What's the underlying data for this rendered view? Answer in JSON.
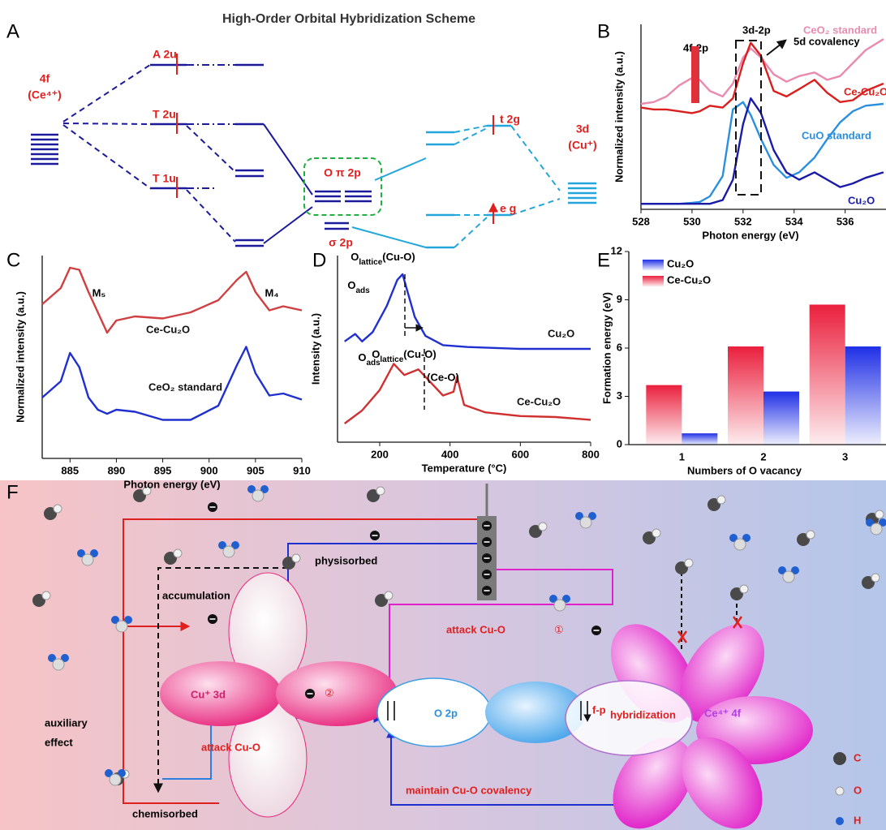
{
  "scheme_a": {
    "panel": "A",
    "title": "High-Order Orbital Hybridization Scheme",
    "ce_orbital": "4f",
    "ce_ion": "(Ce⁴⁺)",
    "a2u": "A 2u",
    "t2u": "T 2u",
    "t1u": "T 1u",
    "o_pi": "O π 2p",
    "o_sigma": "σ 2p",
    "t2g": "t 2g",
    "eg": "e g",
    "cu_orbital": "3d",
    "cu_ion": "(Cu⁺)"
  },
  "chart_data": [
    {
      "type": "line",
      "panel": "B",
      "xlabel": "Photon energy (eV)",
      "ylabel": "Normalized intensity (a.u.)",
      "xlim": [
        528,
        537.6
      ],
      "xticks": [
        528,
        530,
        532,
        534,
        536
      ],
      "ylim": [
        0,
        10
      ],
      "x": [
        528,
        528.5,
        529,
        529.5,
        530,
        530.3,
        530.7,
        531.2,
        531.6,
        532,
        532.3,
        532.7,
        533.2,
        533.7,
        534.2,
        534.8,
        535.3,
        535.8,
        536.3,
        536.8,
        537.5
      ],
      "series": [
        {
          "name": "CeO₂ standard",
          "color": "#e98aae",
          "values": [
            5.7,
            5.8,
            6.1,
            6.7,
            7.1,
            7.0,
            6.4,
            6.1,
            6.8,
            8.2,
            8.7,
            8.2,
            7.3,
            6.9,
            7.2,
            7.4,
            7.0,
            7.2,
            7.9,
            8.6,
            9.2
          ]
        },
        {
          "name": "Ce-Cu₂O",
          "color": "#d9201e",
          "values": [
            5.5,
            5.4,
            5.4,
            5.3,
            5.2,
            5.3,
            5.6,
            5.5,
            6.0,
            7.9,
            9.0,
            8.3,
            6.4,
            6.1,
            6.5,
            7.0,
            6.3,
            5.8,
            5.9,
            6.4,
            6.8
          ]
        },
        {
          "name": "CuO standard",
          "color": "#2b8fe0",
          "values": [
            0.3,
            0.3,
            0.3,
            0.3,
            0.35,
            0.4,
            0.7,
            1.8,
            5.4,
            5.8,
            5.1,
            3.8,
            2.4,
            1.7,
            2.0,
            2.8,
            3.8,
            4.7,
            5.3,
            5.6,
            5.7
          ]
        },
        {
          "name": "Cu₂O",
          "color": "#1a1aa8",
          "values": [
            0.3,
            0.3,
            0.3,
            0.3,
            0.3,
            0.3,
            0.3,
            0.5,
            1.6,
            4.6,
            6.0,
            5.2,
            3.2,
            2.0,
            1.6,
            2.0,
            1.6,
            1.2,
            1.4,
            1.7,
            2.0
          ]
        }
      ],
      "annotations": [
        "4f-2p",
        "3d-2p",
        "5d covalency"
      ]
    },
    {
      "type": "line",
      "panel": "C",
      "xlabel": "Photon energy (eV)",
      "ylabel": "Normalized intensity (a.u.)",
      "xlim": [
        882,
        910
      ],
      "xticks": [
        885,
        890,
        895,
        900,
        905,
        910
      ],
      "ylim": [
        0,
        10
      ],
      "x": [
        882,
        884,
        885,
        886,
        887,
        888,
        889,
        890,
        892,
        895,
        898,
        901,
        903,
        904,
        905,
        906.5,
        908,
        910
      ],
      "series": [
        {
          "name": "Ce-Cu₂O",
          "color": "#d04040",
          "values": [
            7.6,
            8.4,
            9.4,
            9.3,
            8.2,
            7.2,
            6.2,
            6.8,
            7.0,
            6.9,
            7.2,
            7.8,
            8.8,
            9.2,
            8.2,
            7.3,
            7.5,
            7.3
          ]
        },
        {
          "name": "CeO₂ standard",
          "color": "#2030d0",
          "values": [
            3.0,
            3.8,
            5.2,
            4.5,
            3.0,
            2.4,
            2.2,
            2.4,
            2.3,
            1.9,
            1.9,
            2.6,
            4.6,
            5.5,
            4.2,
            3.1,
            3.2,
            2.9
          ]
        }
      ],
      "annotations": [
        "M₅",
        "M₄"
      ]
    },
    {
      "type": "line",
      "panel": "D",
      "xlabel": "Temperature (°C)",
      "ylabel": "Intensity (a.u.)",
      "xlim": [
        80,
        800
      ],
      "xticks": [
        200,
        400,
        600,
        800
      ],
      "ylim": [
        0,
        10
      ],
      "series": [
        {
          "name": "Cu₂O",
          "color": "#2030d0",
          "x": [
            100,
            130,
            150,
            180,
            220,
            250,
            265,
            280,
            300,
            330,
            380,
            450,
            600,
            800
          ],
          "values": [
            5.4,
            5.8,
            5.4,
            5.9,
            7.3,
            8.7,
            9.0,
            8.0,
            6.7,
            5.7,
            5.2,
            5.1,
            5.0,
            5.0
          ]
        },
        {
          "name": "Ce-Cu₂O",
          "color": "#d03030",
          "x": [
            100,
            150,
            200,
            240,
            270,
            310,
            340,
            380,
            410,
            420,
            440,
            500,
            600,
            700,
            800
          ],
          "values": [
            1.0,
            1.7,
            2.8,
            4.2,
            3.6,
            3.9,
            3.3,
            2.5,
            2.7,
            3.5,
            2.0,
            1.6,
            1.4,
            1.35,
            1.2
          ]
        }
      ],
      "annotations": [
        {
          "base": "O",
          "sub": "lattice",
          "rest": "(Cu-O)"
        },
        {
          "base": "O",
          "sub": "ads"
        },
        {
          "base": "O",
          "sub": "lattice",
          "rest": "(Cu-O)"
        },
        {
          "base": "O",
          "sub": "ads"
        },
        "(Ce-O)"
      ]
    },
    {
      "type": "bar",
      "panel": "E",
      "xlabel": "Numbers of O vacancy",
      "ylabel": "Formation energy (eV)",
      "categories": [
        "1",
        "2",
        "3"
      ],
      "ylim": [
        0,
        12
      ],
      "yticks": [
        0,
        3,
        6,
        9,
        12
      ],
      "series": [
        {
          "name": "Cu₂O",
          "color": "#1f2fe6",
          "values": [
            0.7,
            3.3,
            6.1
          ]
        },
        {
          "name": "Ce-Cu₂O",
          "color": "#ea1f3c",
          "values": [
            3.7,
            6.1,
            8.7
          ]
        }
      ]
    }
  ],
  "scheme_f": {
    "panel": "F",
    "physisorbed": "physisorbed",
    "accumulation": "accumulation",
    "auxiliary": "auxiliary",
    "effect": "effect",
    "chemisorbed": "chemisorbed",
    "attack_1": "attack Cu-O",
    "step_1": "①",
    "attack_2": "attack Cu-O",
    "step_2": "②",
    "cu_3d": "Cu⁺ 3d",
    "o_2p": "O 2p",
    "fp": "f-p",
    "hybridization": "hybridization",
    "ce_4f": "Ce⁴⁺ 4f",
    "maintain": "maintain Cu-O covalency",
    "legend": [
      "C",
      "O",
      "H"
    ]
  }
}
